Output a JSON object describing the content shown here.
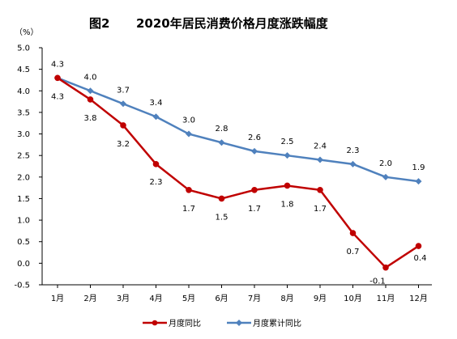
{
  "chart_data": {
    "type": "line",
    "title_prefix": "图2",
    "title": "2020年居民消费价格月度涨跌幅度",
    "ylabel": "（%）",
    "xlabel": "",
    "categories": [
      "1月",
      "2月",
      "3月",
      "4月",
      "5月",
      "6月",
      "7月",
      "8月",
      "9月",
      "10月",
      "11月",
      "12月"
    ],
    "ylim": [
      -0.5,
      5.0
    ],
    "yticks": [
      "5.0",
      "4.5",
      "4.0",
      "3.5",
      "3.0",
      "2.5",
      "2.0",
      "1.5",
      "1.0",
      "0.5",
      "0.0",
      "-0.5"
    ],
    "ytick_values": [
      5.0,
      4.5,
      4.0,
      3.5,
      3.0,
      2.5,
      2.0,
      1.5,
      1.0,
      0.5,
      0.0,
      -0.5
    ],
    "grid": false,
    "legend_position": "bottom-center",
    "series": [
      {
        "name": "月度同比",
        "color": "#C00000",
        "marker": "circle",
        "values": [
          4.3,
          3.8,
          3.2,
          2.3,
          1.7,
          1.5,
          1.7,
          1.8,
          1.7,
          0.7,
          -0.1,
          0.4
        ],
        "labels": [
          "4.3",
          "3.8",
          "3.2",
          "2.3",
          "1.7",
          "1.5",
          "1.7",
          "1.8",
          "1.7",
          "0.7",
          "-0.1",
          "0.4"
        ]
      },
      {
        "name": "月度累计同比",
        "color": "#4F81BD",
        "marker": "diamond",
        "values": [
          4.3,
          4.0,
          3.7,
          3.4,
          3.0,
          2.8,
          2.6,
          2.5,
          2.4,
          2.3,
          2.0,
          1.9
        ],
        "labels": [
          "4.3",
          "4.0",
          "3.7",
          "3.4",
          "3.0",
          "2.8",
          "2.6",
          "2.5",
          "2.4",
          "2.3",
          "2.0",
          "1.9"
        ]
      }
    ]
  }
}
